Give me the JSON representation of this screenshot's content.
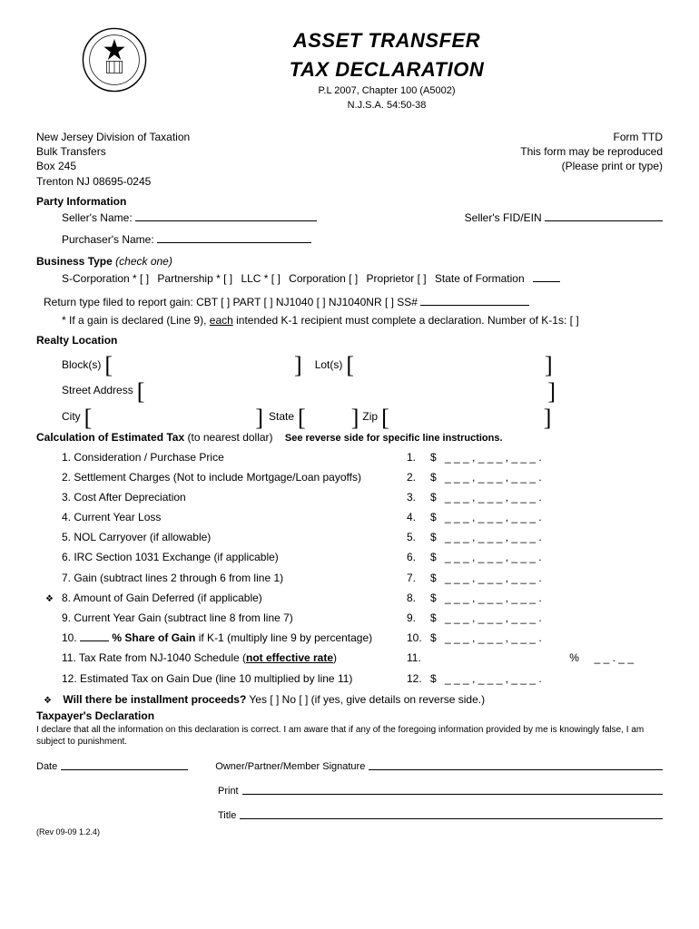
{
  "header": {
    "title_line1": "ASSET TRANSFER",
    "title_line2": "TAX DECLARATION",
    "subtitle1": "P.L 2007, Chapter 100 (A5002)",
    "subtitle2": "N.J.S.A. 54:50-38"
  },
  "address": {
    "left": [
      "New Jersey Division of Taxation",
      "Bulk Transfers",
      "Box 245",
      "Trenton NJ 08695-0245"
    ],
    "right": [
      "Form TTD",
      "This form may be reproduced",
      "(Please print or type)"
    ]
  },
  "party": {
    "title": "Party Information",
    "seller": "Seller's Name:",
    "seller_fid": "Seller's FID/EIN",
    "purchaser": "Purchaser's Name:"
  },
  "business": {
    "title": "Business Type",
    "hint": "(check one)",
    "options": [
      "S-Corporation * [  ]",
      "Partnership * [  ]",
      "LLC * [  ]",
      "Corporation [  ]",
      "Proprietor [  ]",
      "State of Formation"
    ],
    "return_type": "Return type filed to report gain: CBT [  ]  PART [  ]  NJ1040 [  ]   NJ1040NR [  ]   SS#",
    "k1_note_prefix": "* If a gain is declared (Line 9), ",
    "k1_note_under": "each",
    "k1_note_suffix": " intended K-1 recipient must complete a declaration. Number of K-1s:  [     ]"
  },
  "realty": {
    "title": "Realty Location",
    "blocks": "Block(s)",
    "lots": "Lot(s)",
    "street": "Street Address",
    "city": "City",
    "state": "State",
    "zip": "Zip"
  },
  "calc": {
    "title": "Calculation of Estimated Tax",
    "title_hint": "(to nearest dollar)",
    "see_reverse": "See reverse side for specific line instructions.",
    "lines": [
      {
        "n": "1.",
        "label": "1. Consideration / Purchase Price",
        "bullet": ""
      },
      {
        "n": "2.",
        "label": "2. Settlement Charges (Not to include Mortgage/Loan payoffs)",
        "bullet": ""
      },
      {
        "n": "3.",
        "label": "3. Cost After Depreciation",
        "bullet": ""
      },
      {
        "n": "4.",
        "label": "4. Current Year Loss",
        "bullet": ""
      },
      {
        "n": "5.",
        "label": "5. NOL Carryover (if allowable)",
        "bullet": ""
      },
      {
        "n": "6.",
        "label": "6. IRC Section 1031 Exchange (if applicable)",
        "bullet": ""
      },
      {
        "n": "7.",
        "label": "7. Gain  (subtract lines 2 through 6 from line 1)",
        "bullet": ""
      },
      {
        "n": "8.",
        "label": "8. Amount of Gain Deferred (if applicable)",
        "bullet": "❖"
      },
      {
        "n": "9.",
        "label": "9. Current Year Gain (subtract line 8 from line 7)",
        "bullet": ""
      }
    ],
    "line10_pre": "10. ",
    "line10_bold": "% Share of Gain",
    "line10_suf": " if K-1 (multiply line 9 by percentage)",
    "line11_pre": "11. Tax Rate from NJ-1040 Schedule (",
    "line11_bold": "not effective rate",
    "line11_suf": ")",
    "line12": "12. Estimated Tax on Gain Due (line 10 multiplied by line 11)",
    "installment_bullet": "❖",
    "installment": "Will there be installment proceeds?",
    "installment_suffix": "  Yes [  ] No [  ] (if yes, give details on reverse side.)"
  },
  "taxpayer": {
    "title": "Taxpayer's Declaration",
    "text": "I declare that all the information on this declaration is correct.  I am aware that if any of the foregoing information provided by me is knowingly false, I am subject to punishment."
  },
  "sig": {
    "date": "Date",
    "owner": "Owner/Partner/Member Signature",
    "print": "Print",
    "title": "Title"
  },
  "rev": "(Rev 09-09 1.2.4)",
  "amount_template": "_ _ _ , _ _ _ , _ _ _ .",
  "pct_template": "_ _ . _ _"
}
